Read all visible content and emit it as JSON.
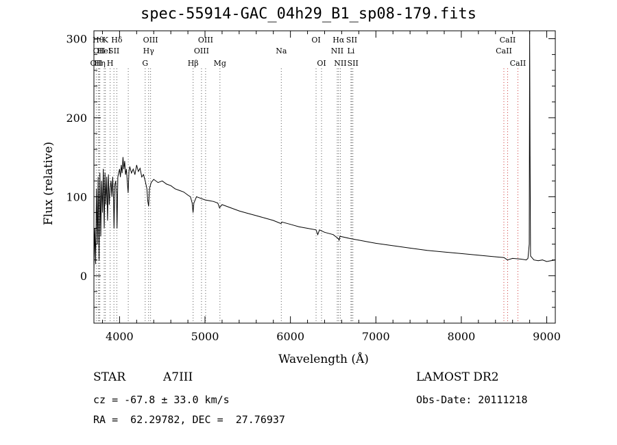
{
  "chart_data": {
    "type": "line",
    "title": "spec-55914-GAC_04h29_B1_sp08-179.fits",
    "xlabel": "Wavelength (Å)",
    "ylabel": "Flux (relative)",
    "xlim": [
      3700,
      9100
    ],
    "ylim": [
      -60,
      310
    ],
    "xticks": [
      4000,
      5000,
      6000,
      7000,
      8000,
      9000
    ],
    "yticks": [
      0,
      100,
      200,
      300
    ],
    "grid": false,
    "series": [
      {
        "values": [
          [
            3700,
            5
          ],
          [
            3710,
            60
          ],
          [
            3720,
            15
          ],
          [
            3730,
            110
          ],
          [
            3740,
            40
          ],
          [
            3750,
            125
          ],
          [
            3760,
            20
          ],
          [
            3770,
            130
          ],
          [
            3780,
            50
          ],
          [
            3790,
            120
          ],
          [
            3800,
            80
          ],
          [
            3810,
            135
          ],
          [
            3820,
            60
          ],
          [
            3830,
            130
          ],
          [
            3840,
            90
          ],
          [
            3850,
            125
          ],
          [
            3860,
            70
          ],
          [
            3870,
            128
          ],
          [
            3880,
            90
          ],
          [
            3890,
            110
          ],
          [
            3900,
            120
          ],
          [
            3910,
            100
          ],
          [
            3920,
            125
          ],
          [
            3930,
            95
          ],
          [
            3935,
            60
          ],
          [
            3945,
            115
          ],
          [
            3955,
            120
          ],
          [
            3965,
            100
          ],
          [
            3970,
            60
          ],
          [
            3980,
            125
          ],
          [
            3990,
            130
          ],
          [
            4000,
            135
          ],
          [
            4010,
            125
          ],
          [
            4020,
            140
          ],
          [
            4030,
            130
          ],
          [
            4040,
            150
          ],
          [
            4050,
            135
          ],
          [
            4060,
            145
          ],
          [
            4070,
            128
          ],
          [
            4080,
            135
          ],
          [
            4090,
            120
          ],
          [
            4100,
            105
          ],
          [
            4110,
            132
          ],
          [
            4120,
            138
          ],
          [
            4140,
            130
          ],
          [
            4160,
            135
          ],
          [
            4180,
            128
          ],
          [
            4200,
            140
          ],
          [
            4220,
            132
          ],
          [
            4240,
            136
          ],
          [
            4260,
            125
          ],
          [
            4280,
            128
          ],
          [
            4300,
            120
          ],
          [
            4320,
            110
          ],
          [
            4330,
            95
          ],
          [
            4340,
            88
          ],
          [
            4350,
            110
          ],
          [
            4370,
            118
          ],
          [
            4400,
            122
          ],
          [
            4450,
            118
          ],
          [
            4500,
            120
          ],
          [
            4550,
            116
          ],
          [
            4600,
            114
          ],
          [
            4650,
            110
          ],
          [
            4700,
            108
          ],
          [
            4750,
            106
          ],
          [
            4800,
            102
          ],
          [
            4830,
            100
          ],
          [
            4850,
            92
          ],
          [
            4860,
            80
          ],
          [
            4870,
            92
          ],
          [
            4900,
            100
          ],
          [
            4950,
            98
          ],
          [
            5000,
            96
          ],
          [
            5050,
            95
          ],
          [
            5100,
            94
          ],
          [
            5150,
            92
          ],
          [
            5170,
            86
          ],
          [
            5200,
            90
          ],
          [
            5300,
            86
          ],
          [
            5400,
            82
          ],
          [
            5500,
            79
          ],
          [
            5600,
            76
          ],
          [
            5700,
            73
          ],
          [
            5800,
            70
          ],
          [
            5890,
            66
          ],
          [
            5900,
            68
          ],
          [
            6000,
            65
          ],
          [
            6100,
            62
          ],
          [
            6200,
            60
          ],
          [
            6300,
            58
          ],
          [
            6320,
            52
          ],
          [
            6340,
            58
          ],
          [
            6400,
            55
          ],
          [
            6500,
            52
          ],
          [
            6560,
            47
          ],
          [
            6570,
            45
          ],
          [
            6580,
            50
          ],
          [
            6700,
            47
          ],
          [
            6800,
            45
          ],
          [
            6900,
            43
          ],
          [
            7000,
            41
          ],
          [
            7200,
            38
          ],
          [
            7400,
            35
          ],
          [
            7600,
            32
          ],
          [
            7800,
            30
          ],
          [
            8000,
            28
          ],
          [
            8200,
            26
          ],
          [
            8400,
            24
          ],
          [
            8500,
            23
          ],
          [
            8540,
            20
          ],
          [
            8600,
            22
          ],
          [
            8700,
            21
          ],
          [
            8760,
            20
          ],
          [
            8780,
            22
          ],
          [
            8795,
            40
          ],
          [
            8800,
            310
          ],
          [
            8805,
            150
          ],
          [
            8810,
            25
          ],
          [
            8850,
            20
          ],
          [
            8900,
            19
          ],
          [
            8950,
            20
          ],
          [
            9000,
            18
          ],
          [
            9050,
            19
          ],
          [
            9100,
            20
          ]
        ]
      }
    ],
    "lines": [
      {
        "wavelength": 3727,
        "labels": [
          "OII"
        ],
        "row": 3,
        "color": "#555555"
      },
      {
        "wavelength": 3750,
        "labels": [
          "Hθ"
        ],
        "row": 1,
        "color": "#555555"
      },
      {
        "wavelength": 3760,
        "labels": [
          "OII"
        ],
        "row": 2,
        "color": "#555555"
      },
      {
        "wavelength": 3770,
        "labels": [
          "Hη"
        ],
        "row": 3,
        "color": "#555555"
      },
      {
        "wavelength": 3820,
        "labels": [
          "HeI"
        ],
        "row": 2,
        "color": "#555555"
      },
      {
        "wavelength": 3834,
        "labels": [
          "K"
        ],
        "row": 1,
        "color": "#555555"
      },
      {
        "wavelength": 3890,
        "labels": [
          "H"
        ],
        "row": 3,
        "color": "#555555"
      },
      {
        "wavelength": 3934,
        "labels": [
          "SII"
        ],
        "row": 2,
        "color": "#555555"
      },
      {
        "wavelength": 3968,
        "labels": [
          "Hδ"
        ],
        "row": 1,
        "color": "#555555"
      },
      {
        "wavelength": 4102,
        "labels": [],
        "row": 0,
        "color": "#555555"
      },
      {
        "wavelength": 4300,
        "labels": [
          "G"
        ],
        "row": 3,
        "color": "#555555"
      },
      {
        "wavelength": 4340,
        "labels": [
          "Hγ"
        ],
        "row": 2,
        "color": "#555555"
      },
      {
        "wavelength": 4363,
        "labels": [
          "OIII"
        ],
        "row": 1,
        "color": "#555555"
      },
      {
        "wavelength": 4861,
        "labels": [
          "Hβ"
        ],
        "row": 3,
        "color": "#555555"
      },
      {
        "wavelength": 4959,
        "labels": [
          "OIII"
        ],
        "row": 2,
        "color": "#555555"
      },
      {
        "wavelength": 5007,
        "labels": [
          "OIII"
        ],
        "row": 1,
        "color": "#555555"
      },
      {
        "wavelength": 5175,
        "labels": [
          "Mg"
        ],
        "row": 3,
        "color": "#555555"
      },
      {
        "wavelength": 5893,
        "labels": [
          "Na"
        ],
        "row": 2,
        "color": "#555555"
      },
      {
        "wavelength": 6300,
        "labels": [
          "OI"
        ],
        "row": 1,
        "color": "#555555"
      },
      {
        "wavelength": 6364,
        "labels": [
          "OI"
        ],
        "row": 3,
        "color": "#555555"
      },
      {
        "wavelength": 6548,
        "labels": [
          "NII"
        ],
        "row": 2,
        "color": "#555555"
      },
      {
        "wavelength": 6563,
        "labels": [
          "Hα"
        ],
        "row": 1,
        "color": "#555555"
      },
      {
        "wavelength": 6584,
        "labels": [
          "NII"
        ],
        "row": 3,
        "color": "#555555"
      },
      {
        "wavelength": 6708,
        "labels": [
          "Li"
        ],
        "row": 2,
        "color": "#555555"
      },
      {
        "wavelength": 6717,
        "labels": [
          "SII"
        ],
        "row": 1,
        "color": "#555555"
      },
      {
        "wavelength": 6731,
        "labels": [
          "SII"
        ],
        "row": 3,
        "color": "#555555"
      },
      {
        "wavelength": 8498,
        "labels": [
          "CaII"
        ],
        "row": 2,
        "color": "#cc3333"
      },
      {
        "wavelength": 8542,
        "labels": [
          "CaII"
        ],
        "row": 1,
        "color": "#cc3333"
      },
      {
        "wavelength": 8662,
        "labels": [
          "CaII"
        ],
        "row": 3,
        "color": "#cc3333"
      }
    ]
  },
  "info": {
    "object_class": "STAR",
    "subclass": "A7III",
    "survey": "LAMOST DR2",
    "redshift": "cz = -67.8 ± 33.0 km/s",
    "obs_date": "Obs-Date: 20111218",
    "coords": "RA =  62.29782, DEC =  27.76937"
  }
}
